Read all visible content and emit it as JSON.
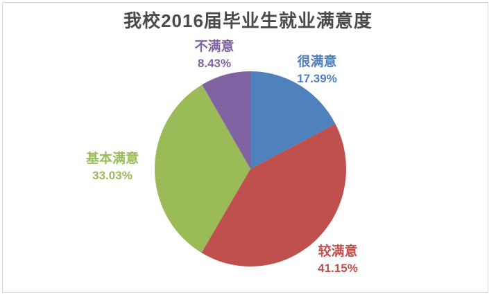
{
  "chart_data": {
    "type": "pie",
    "title": "我校2016届毕业生就业满意度",
    "title_color": "#4a4a4a",
    "legend": "none",
    "labels_position": "outside",
    "start_angle_deg": 0,
    "direction": "clockwise",
    "total": 100,
    "slices": [
      {
        "key": "hen-manyi",
        "label": "很满意",
        "value": 17.39,
        "pct_label": "17.39%",
        "color": "#4F81BD"
      },
      {
        "key": "jiao-manyi",
        "label": "较满意",
        "value": 41.15,
        "pct_label": "41.15%",
        "color": "#C0504D"
      },
      {
        "key": "jiben-manyi",
        "label": "基本满意",
        "value": 33.03,
        "pct_label": "33.03%",
        "color": "#9BBB59"
      },
      {
        "key": "bu-manyi",
        "label": "不满意",
        "value": 8.43,
        "pct_label": "8.43%",
        "color": "#8064A2"
      }
    ]
  }
}
